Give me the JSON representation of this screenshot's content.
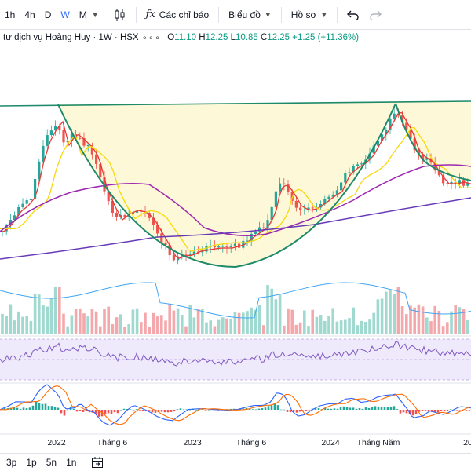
{
  "toolbar": {
    "timeframes": [
      "1h",
      "4h",
      "D",
      "W",
      "M"
    ],
    "active_timeframe": "W",
    "indicators_label": "Các chỉ báo",
    "chart_label": "Biểu đồ",
    "profile_label": "Hồ sơ"
  },
  "legend": {
    "symbol": "tư dịch vụ Hoàng Huy · 1W · HSX",
    "open_key": "O",
    "open": "11.10",
    "high_key": "H",
    "high": "12.25",
    "low_key": "L",
    "low": "10.85",
    "close_key": "C",
    "close": "12.25",
    "change": "+1.25 (+11.36%)"
  },
  "axis": {
    "labels": [
      "2022",
      "Tháng 6",
      "2023",
      "Tháng 6",
      "2024",
      "Tháng Năm",
      "20"
    ]
  },
  "bottom": {
    "ranges": [
      "3p",
      "1p",
      "5n",
      "1n"
    ]
  },
  "colors": {
    "up": "#26a69a",
    "down": "#ef5350",
    "accent": "#2962ff",
    "ma_red": "#e53935",
    "ma_yellow": "#f5d90a",
    "ma_purple": "#9c27b0",
    "ma_long": "#673ab7",
    "pattern": "#1e8a6a"
  }
}
